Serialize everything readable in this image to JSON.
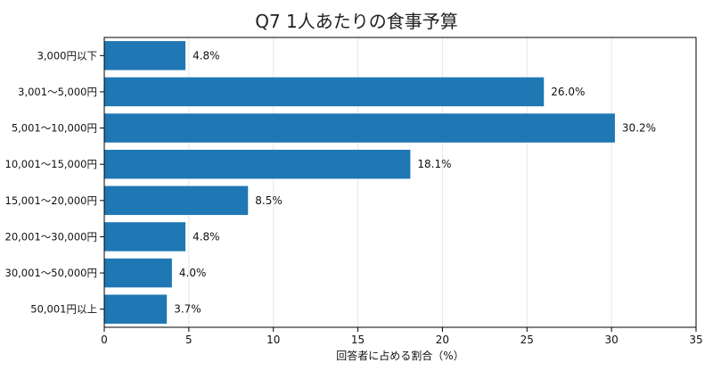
{
  "chart_data": {
    "type": "bar",
    "orientation": "horizontal",
    "title": "Q7 1人あたりの食事予算",
    "xlabel": "回答者に占める割合（%）",
    "ylabel": "",
    "xlim": [
      0,
      35
    ],
    "xticks": [
      0,
      5,
      10,
      15,
      20,
      25,
      30,
      35
    ],
    "grid": "vertical",
    "bar_color": "#1f77b4",
    "categories": [
      "3,000円以下",
      "3,001～5,000円",
      "5,001～10,000円",
      "10,001～15,000円",
      "15,001～20,000円",
      "20,001～30,000円",
      "30,001～50,000円",
      "50,001円以上"
    ],
    "values": [
      4.8,
      26.0,
      30.2,
      18.1,
      8.5,
      4.8,
      4.0,
      3.7
    ],
    "value_labels": [
      "4.8%",
      "26.0%",
      "30.2%",
      "18.1%",
      "8.5%",
      "4.8%",
      "4.0%",
      "3.7%"
    ]
  }
}
